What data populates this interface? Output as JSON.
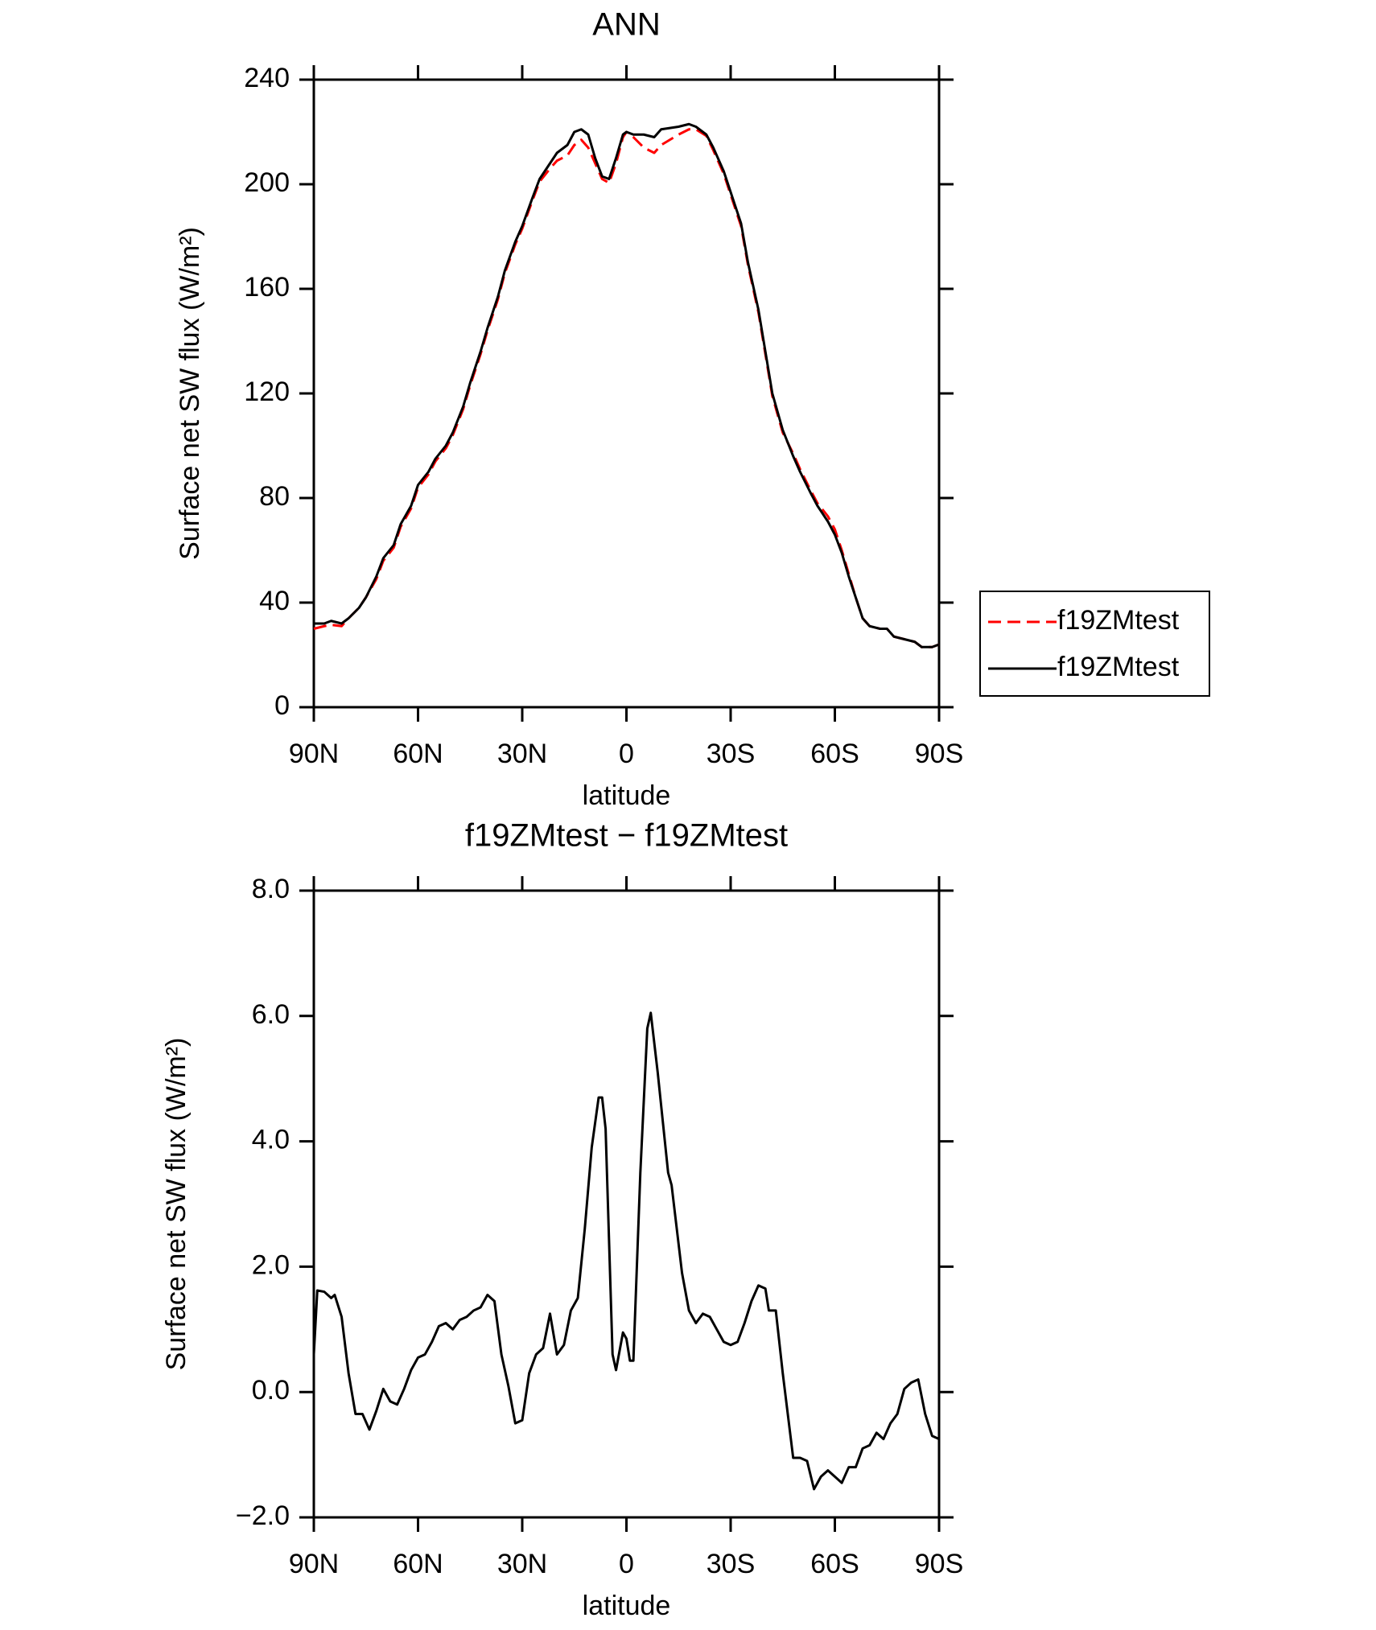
{
  "chart_data": [
    {
      "type": "line",
      "title": "ANN",
      "x_label": "latitude",
      "y_label": "Surface net SW flux (W/m²)",
      "x": [
        90,
        87,
        85,
        82,
        80,
        77,
        75,
        72,
        70,
        67,
        65,
        62,
        60,
        57,
        55,
        52,
        50,
        47,
        45,
        42,
        40,
        37,
        35,
        32,
        30,
        27,
        25,
        22,
        20,
        17,
        15,
        13,
        11,
        9,
        7,
        5,
        3,
        1,
        0,
        -2,
        -5,
        -8,
        -10,
        -15,
        -18,
        -20,
        -23,
        -25,
        -28,
        -30,
        -33,
        -35,
        -38,
        -40,
        -42,
        -45,
        -48,
        -50,
        -53,
        -55,
        -58,
        -60,
        -62,
        -64,
        -66,
        -68,
        -70,
        -73,
        -75,
        -77,
        -80,
        -83,
        -85,
        -88,
        -90
      ],
      "series": [
        {
          "name": "f19ZMtest",
          "color": "#ff0000",
          "line_style": "dashed",
          "values": [
            30,
            31,
            31.5,
            31,
            34,
            38,
            42,
            49,
            56,
            61,
            69,
            76,
            84,
            89,
            94,
            99,
            104,
            114,
            123,
            135,
            144,
            156,
            166,
            177,
            183,
            194,
            201,
            206,
            209,
            211,
            215,
            217,
            214,
            208,
            202,
            200.5,
            208,
            218,
            220,
            218,
            214,
            212,
            215,
            219,
            221,
            221,
            218.5,
            213,
            204,
            196,
            184,
            169,
            151,
            135,
            119,
            105,
            97,
            91,
            83,
            78,
            73,
            68,
            60,
            51,
            42,
            34,
            31,
            30,
            30,
            27,
            26,
            25,
            23,
            23,
            24
          ]
        },
        {
          "name": "f19ZMtest",
          "color": "#000000",
          "line_style": "solid",
          "values": [
            32,
            32,
            33,
            32,
            34,
            38,
            42,
            50,
            57,
            62,
            70,
            77,
            85,
            90,
            95,
            100,
            105,
            115,
            124,
            136,
            145,
            157,
            167,
            178,
            184,
            195,
            202,
            208,
            212,
            215,
            220,
            221,
            219,
            210,
            203,
            202,
            210,
            219,
            220,
            219,
            219,
            218,
            221,
            222,
            223,
            222,
            219,
            214,
            205,
            197,
            185,
            170,
            152,
            136,
            120,
            106,
            96,
            90,
            82,
            77,
            71,
            66,
            59,
            50,
            42,
            34,
            31,
            30,
            30,
            27,
            26,
            25,
            23,
            23,
            24
          ]
        }
      ],
      "xlim": [
        90,
        -90
      ],
      "xticks": [
        {
          "value": 90,
          "label": "90N"
        },
        {
          "value": 60,
          "label": "60N"
        },
        {
          "value": 30,
          "label": "30N"
        },
        0,
        {
          "value": -30,
          "label": "30S"
        },
        {
          "value": -60,
          "label": "60S"
        },
        {
          "value": -90,
          "label": "90S"
        }
      ],
      "ylim": [
        0,
        240
      ],
      "yticks": [
        0,
        40,
        80,
        120,
        160,
        200,
        240
      ],
      "legend": "right"
    },
    {
      "type": "line",
      "title": "f19ZMtest − f19ZMtest",
      "x_label": "latitude",
      "y_label": "Surface net SW flux (W/m²)",
      "x": [
        90,
        89,
        87,
        85,
        84,
        82,
        80,
        78,
        76,
        74,
        72,
        70,
        68,
        66,
        64,
        62,
        60,
        58,
        56,
        54,
        52,
        50,
        48,
        46,
        44,
        42,
        40,
        38,
        36,
        34,
        32,
        30,
        28,
        26,
        24,
        22,
        20,
        18,
        16,
        14,
        12,
        10,
        8,
        7,
        6,
        4,
        3,
        1,
        0,
        -1,
        -2,
        -4,
        -6,
        -7,
        -9,
        -12,
        -13,
        -16,
        -18,
        -20,
        -22,
        -24,
        -26,
        -28,
        -30,
        -32,
        -34,
        -36,
        -38,
        -40,
        -41,
        -43,
        -45,
        -48,
        -50,
        -52,
        -54,
        -56,
        -58,
        -60,
        -62,
        -64,
        -66,
        -68,
        -70,
        -72,
        -74,
        -76,
        -78,
        -80,
        -82,
        -84,
        -86,
        -88,
        -90
      ],
      "series": [
        {
          "color": "#000000",
          "line_style": "solid",
          "values": [
            0.6,
            1.62,
            1.6,
            1.5,
            1.55,
            1.2,
            0.3,
            -0.35,
            -0.35,
            -0.6,
            -0.3,
            0.05,
            -0.15,
            -0.2,
            0.05,
            0.35,
            0.55,
            0.6,
            0.8,
            1.05,
            1.1,
            1.0,
            1.15,
            1.2,
            1.3,
            1.35,
            1.55,
            1.45,
            0.6,
            0.1,
            -0.5,
            -0.45,
            0.3,
            0.6,
            0.7,
            1.25,
            0.6,
            0.75,
            1.3,
            1.5,
            2.6,
            3.9,
            4.7,
            4.7,
            4.2,
            0.6,
            0.35,
            0.95,
            0.85,
            0.5,
            0.5,
            3.5,
            5.8,
            6.05,
            5.1,
            3.5,
            3.3,
            1.9,
            1.3,
            1.1,
            1.25,
            1.2,
            1.0,
            0.8,
            0.75,
            0.8,
            1.1,
            1.45,
            1.7,
            1.65,
            1.3,
            1.3,
            0.3,
            -1.05,
            -1.05,
            -1.1,
            -1.55,
            -1.35,
            -1.25,
            -1.35,
            -1.45,
            -1.2,
            -1.2,
            -0.9,
            -0.85,
            -0.65,
            -0.75,
            -0.5,
            -0.35,
            0.05,
            0.15,
            0.2,
            -0.35,
            -0.7,
            -0.75
          ]
        }
      ],
      "xlim": [
        90,
        -90
      ],
      "xticks": [
        {
          "value": 90,
          "label": "90N"
        },
        {
          "value": 60,
          "label": "60N"
        },
        {
          "value": 30,
          "label": "30N"
        },
        0,
        {
          "value": -30,
          "label": "30S"
        },
        {
          "value": -60,
          "label": "60S"
        },
        {
          "value": -90,
          "label": "90S"
        }
      ],
      "ylim": [
        -2,
        8
      ],
      "yticks": [
        {
          "value": -2,
          "label": "−2.0"
        },
        {
          "value": 0,
          "label": "0.0"
        },
        {
          "value": 2,
          "label": "2.0"
        },
        {
          "value": 4,
          "label": "4.0"
        },
        {
          "value": 6,
          "label": "6.0"
        },
        {
          "value": 8,
          "label": "8.0"
        }
      ]
    }
  ]
}
